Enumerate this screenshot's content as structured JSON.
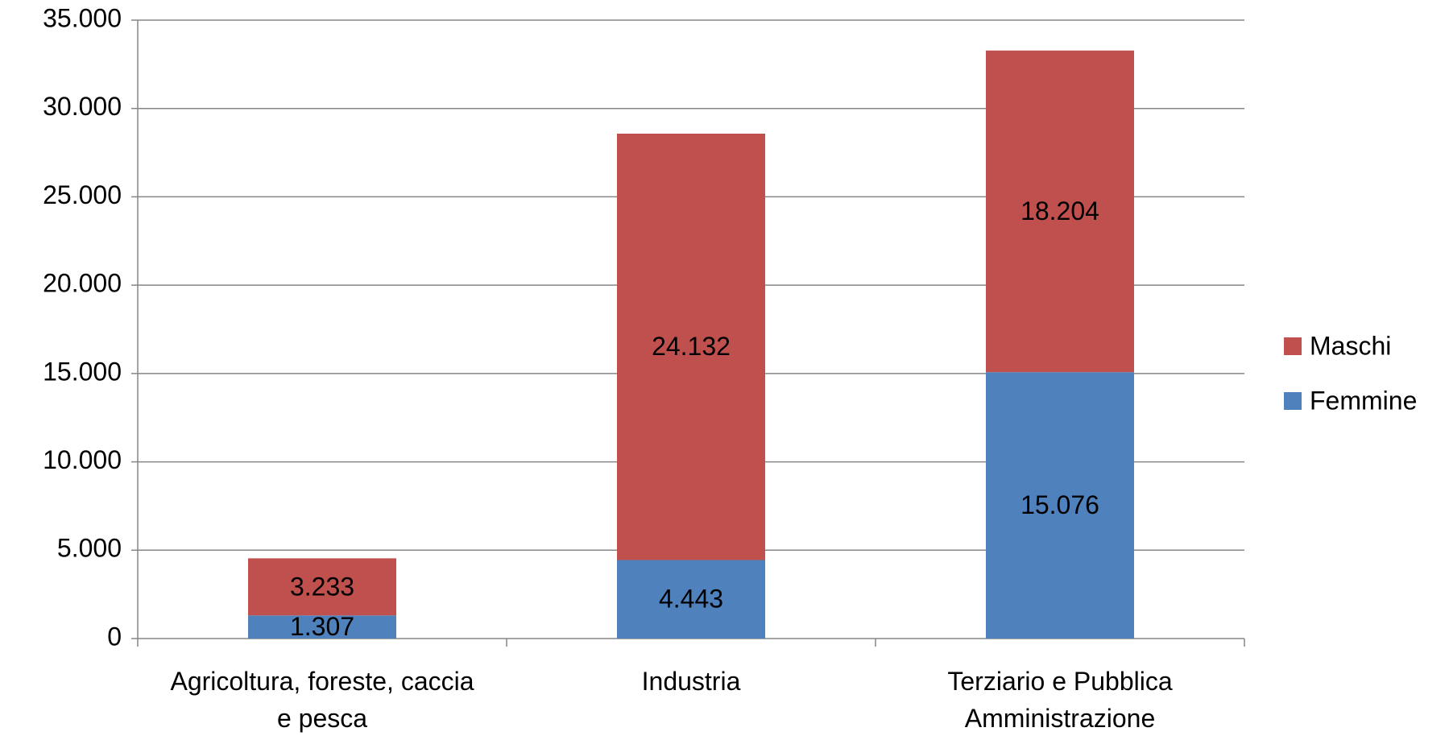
{
  "chart_data": {
    "type": "bar",
    "stacked": true,
    "categories": [
      "Agricoltura, foreste, caccia e pesca",
      "Industria",
      "Terziario e Pubblica Amministrazione"
    ],
    "series": [
      {
        "name": "Femmine",
        "color": "#4f81bd",
        "values": [
          1307,
          4443,
          15076
        ],
        "value_labels": [
          "1.307",
          "4.443",
          "15.076"
        ]
      },
      {
        "name": "Maschi",
        "color": "#c0504d",
        "values": [
          3233,
          24132,
          18204
        ],
        "value_labels": [
          "3.233",
          "24.132",
          "18.204"
        ]
      }
    ],
    "ylim": [
      0,
      35000
    ],
    "yticks": [
      0,
      {
        "value": 5000,
        "label": "5.000"
      },
      {
        "value": 10000,
        "label": "10.000"
      },
      {
        "value": 15000,
        "label": "15.000"
      },
      {
        "value": 20000,
        "label": "20.000"
      },
      {
        "value": 25000,
        "label": "25.000"
      },
      {
        "value": 30000,
        "label": "30.000"
      },
      {
        "value": 35000,
        "label": "35.000"
      }
    ],
    "grid": true,
    "legend": "right"
  }
}
